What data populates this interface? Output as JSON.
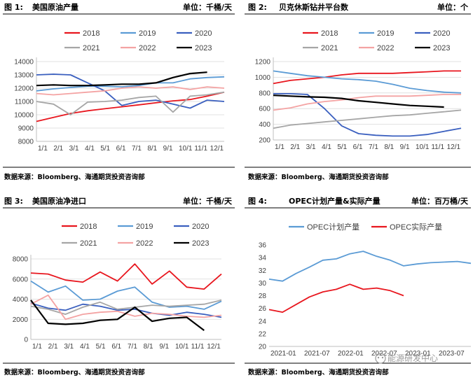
{
  "chart_data": [
    {
      "type": "line",
      "fig_label": "图 1:",
      "title": "美国原油产量",
      "unit": "单位：千桶/天",
      "source": "数据来源：Bloomberg、海通期货投资咨询部",
      "ylim": [
        8000,
        14000
      ],
      "yticks": [
        "8000",
        "9000",
        "10000",
        "11000",
        "12000",
        "13000",
        "14000"
      ],
      "xticks": [
        "1/1",
        "2/1",
        "3/1",
        "4/1",
        "5/1",
        "6/1",
        "7/1",
        "8/1",
        "9/1",
        "10/1",
        "11/1",
        "12/1"
      ],
      "series": [
        {
          "name": "2018",
          "color": "#e8161e",
          "values": [
            9500,
            9800,
            10100,
            10300,
            10450,
            10600,
            10750,
            10900,
            11050,
            11150,
            11400,
            11700
          ]
        },
        {
          "name": "2019",
          "color": "#5b9bd5",
          "values": [
            11800,
            11950,
            12050,
            12150,
            12150,
            12100,
            12200,
            12400,
            12400,
            12700,
            12800,
            12850
          ]
        },
        {
          "name": "2020",
          "color": "#3a5fbf",
          "values": [
            13000,
            13050,
            13000,
            12400,
            11800,
            10700,
            11000,
            11100,
            10800,
            10500,
            11100,
            11000
          ]
        },
        {
          "name": "2021",
          "color": "#a6a6a6",
          "values": [
            11000,
            10800,
            10000,
            10950,
            11000,
            11100,
            11300,
            11400,
            10200,
            11400,
            11500,
            11700
          ]
        },
        {
          "name": "2022",
          "color": "#f4a3a3",
          "values": [
            11600,
            11500,
            11600,
            11700,
            11800,
            12000,
            12100,
            12000,
            12100,
            11900,
            12100,
            12000
          ]
        },
        {
          "name": "2023",
          "color": "#000000",
          "values": [
            12200,
            12250,
            12200,
            12200,
            12250,
            12300,
            12300,
            12400,
            12800,
            13100,
            13200
          ]
        }
      ]
    },
    {
      "type": "line",
      "fig_label": "图 2:",
      "title": "贝克休斯钻井平台数",
      "unit": "单位：个",
      "source": "数据来源：Bloomberg、海通期货投资咨询部",
      "ylim": [
        200,
        1200
      ],
      "yticks": [
        "200",
        "400",
        "600",
        "800",
        "1000",
        "1200"
      ],
      "xticks": [
        "1/1",
        "2/1",
        "3/1",
        "4/1",
        "5/1",
        "6/1",
        "7/1",
        "8/1",
        "9/1",
        "10/1",
        "11/1",
        "12/1"
      ],
      "series": [
        {
          "name": "2018",
          "color": "#e8161e",
          "values": [
            920,
            960,
            980,
            1000,
            1030,
            1050,
            1050,
            1050,
            1060,
            1070,
            1080,
            1080
          ]
        },
        {
          "name": "2019",
          "color": "#5b9bd5",
          "values": [
            1080,
            1050,
            1020,
            1000,
            980,
            970,
            950,
            910,
            860,
            830,
            810,
            800
          ]
        },
        {
          "name": "2020",
          "color": "#3a5fbf",
          "values": [
            790,
            790,
            780,
            600,
            380,
            280,
            260,
            250,
            250,
            270,
            310,
            350
          ]
        },
        {
          "name": "2021",
          "color": "#a6a6a6",
          "values": [
            350,
            390,
            410,
            430,
            450,
            470,
            490,
            510,
            520,
            540,
            560,
            580
          ]
        },
        {
          "name": "2022",
          "color": "#f4a3a3",
          "values": [
            580,
            610,
            660,
            690,
            710,
            740,
            760,
            760,
            760,
            770,
            780,
            780
          ]
        },
        {
          "name": "2023",
          "color": "#000000",
          "values": [
            770,
            760,
            750,
            745,
            730,
            700,
            680,
            660,
            640,
            630,
            620
          ]
        }
      ]
    },
    {
      "type": "line",
      "fig_label": "图 3:",
      "title": "美国原油净进口",
      "unit": "单位：千桶/天",
      "source": "数据来源：Bloomberg、海通期货投资咨询部",
      "ylim": [
        0,
        8000
      ],
      "yticks": [
        "0",
        "2000",
        "4000",
        "6000",
        "8000"
      ],
      "xticks": [
        "1/1",
        "2/1",
        "3/1",
        "4/1",
        "5/1",
        "6/1",
        "7/1",
        "8/1",
        "9/1",
        "10/1",
        "11/1",
        "12/1"
      ],
      "series": [
        {
          "name": "2018",
          "color": "#e8161e",
          "values": [
            6600,
            6500,
            5900,
            5700,
            6700,
            5800,
            7500,
            5500,
            6800,
            5200,
            5000,
            6500
          ]
        },
        {
          "name": "2019",
          "color": "#5b9bd5",
          "values": [
            5800,
            4700,
            5300,
            3900,
            4000,
            4800,
            5200,
            3700,
            3200,
            3300,
            3000,
            3800
          ]
        },
        {
          "name": "2020",
          "color": "#3a5fbf",
          "values": [
            3600,
            3100,
            2900,
            3500,
            3300,
            2900,
            3000,
            2600,
            2400,
            2700,
            2500,
            2200
          ]
        },
        {
          "name": "2021",
          "color": "#a6a6a6",
          "values": [
            3300,
            3000,
            2500,
            3200,
            3700,
            3000,
            3200,
            3400,
            3300,
            3400,
            3500,
            3900
          ]
        },
        {
          "name": "2022",
          "color": "#f4a3a3",
          "values": [
            3500,
            4400,
            2000,
            2500,
            2700,
            2800,
            2300,
            2600,
            2500,
            2300,
            2200,
            2400
          ]
        },
        {
          "name": "2023",
          "color": "#000000",
          "values": [
            3900,
            1600,
            1500,
            1600,
            1900,
            2000,
            3200,
            1800,
            2100,
            2200,
            900
          ]
        }
      ]
    },
    {
      "type": "line",
      "fig_label": "图 4:",
      "title": "OPEC计划产量&实际产量",
      "unit": "单位：百万桶/天",
      "source": "数据来源：Bloomberg、海通期货投资咨询部",
      "ylim": [
        20,
        36
      ],
      "yticks": [
        "20",
        "22",
        "24",
        "26",
        "28",
        "30",
        "32",
        "34",
        "36"
      ],
      "xticks": [
        "2021-01",
        "2021-07",
        "2022-01",
        "2022-07",
        "2023-01",
        "2023-07"
      ],
      "series": [
        {
          "name": "OPEC计划产量",
          "color": "#5b9bd5",
          "values": [
            30.6,
            30.3,
            31.5,
            32.5,
            33.6,
            33.8,
            34.6,
            35.0,
            34.2,
            33.6,
            32.7,
            33.0,
            33.2,
            33.3,
            33.4,
            33.1
          ]
        },
        {
          "name": "OPEC实际产量",
          "color": "#e8161e",
          "values": [
            25.8,
            25.4,
            26.6,
            27.8,
            28.6,
            29.0,
            29.8,
            29.0,
            29.2,
            28.8,
            28.0
          ]
        }
      ]
    }
  ],
  "watermark": "能源研发中心"
}
